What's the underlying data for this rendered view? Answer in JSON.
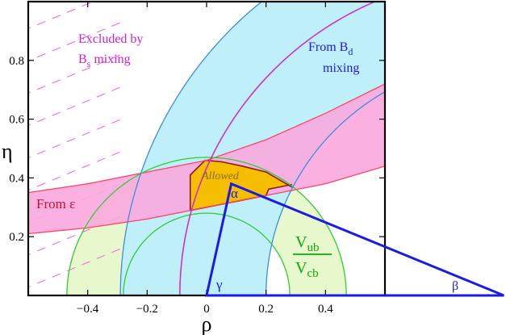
{
  "chart_data": {
    "type": "area",
    "title": "",
    "xlabel": "ρ",
    "ylabel": "η",
    "xlim": [
      -0.6,
      0.6
    ],
    "ylim": [
      0,
      1.0
    ],
    "xticks": [
      -0.4,
      -0.2,
      0,
      0.2,
      0.4
    ],
    "xtick_labels": [
      "−0.4",
      "−0.2",
      "0",
      "0.2",
      "0.4"
    ],
    "yticks": [
      0.2,
      0.4,
      0.6,
      0.8
    ],
    "ytick_labels": [
      "0.2",
      "0.4",
      "0.6",
      "0.8"
    ],
    "grid": false,
    "regions": [
      {
        "name": "Vub/Vcb",
        "shape": "annulus",
        "center": [
          0,
          0
        ],
        "inner_radius": 0.28,
        "outer_radius": 0.47,
        "color": "#e6f8cc",
        "edge": "#33cc33"
      },
      {
        "name": "From Bd mixing",
        "shape": "annulus",
        "center": [
          1,
          0
        ],
        "inner_radius": 0.8,
        "outer_radius": 1.29,
        "color": "#bfeff8",
        "edge": "#3a8fe0",
        "central_radius": 1.09
      },
      {
        "name": "From ε",
        "shape": "hyperbolic band",
        "lower_boundary": {
          "rho": [
            -0.6,
            -0.4,
            -0.2,
            0,
            0.2,
            0.4,
            0.6
          ],
          "eta": [
            0.21,
            0.23,
            0.26,
            0.3,
            0.34,
            0.38,
            0.44
          ]
        },
        "upper_boundary": {
          "rho": [
            -0.6,
            -0.4,
            -0.2,
            0,
            0.2,
            0.4,
            0.6
          ],
          "eta": [
            0.35,
            0.38,
            0.42,
            0.46,
            0.53,
            0.62,
            0.72
          ]
        },
        "color": "#f9a8de",
        "edge": "#ff4466"
      },
      {
        "name": "Excluded by Bs mixing",
        "shape": "hatched",
        "boundary_rho": -0.28,
        "color": "#f06ee6"
      },
      {
        "name": "Allowed",
        "shape": "overlap",
        "color": "#f5be00",
        "edge": "#8b1c1c"
      }
    ],
    "triangle": {
      "vertices": [
        [
          0,
          0
        ],
        [
          1,
          0
        ],
        [
          0.083,
          0.38
        ]
      ],
      "color": "#1c1ce0",
      "angle_labels": [
        "α",
        "β",
        "γ"
      ]
    },
    "annotations": {
      "excluded_line1": "Excluded by",
      "excluded_B": "B",
      "excluded_sub": "s",
      "excluded_tail": " mixing",
      "bd_line1_prefix": "From B",
      "bd_sub": "d",
      "bd_line2": "mixing",
      "epsilon_label": "From  ε",
      "allowed_label": "Allowed",
      "vub_V": "V",
      "vub_sub": "ub",
      "vcb_V": "V",
      "vcb_sub": "cb",
      "alpha": "α",
      "beta": "β",
      "gamma": "γ"
    }
  }
}
